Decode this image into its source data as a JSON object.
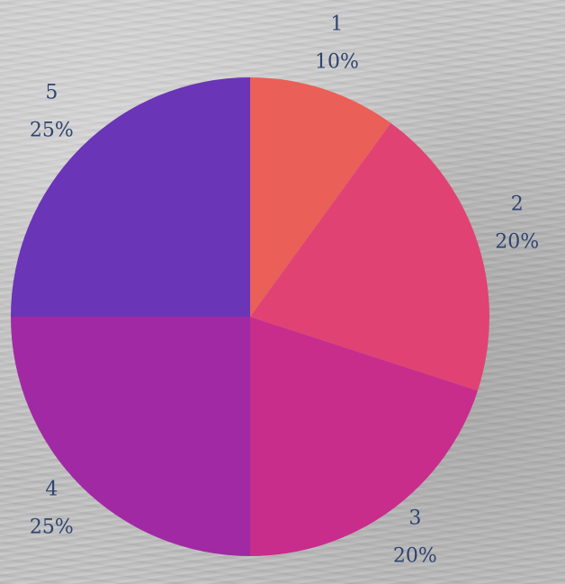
{
  "chart_data": {
    "type": "pie",
    "categories": [
      "1",
      "2",
      "3",
      "4",
      "5"
    ],
    "values": [
      10,
      20,
      20,
      25,
      25
    ],
    "percent_labels": [
      "10%",
      "20%",
      "20%",
      "25%",
      "25%"
    ],
    "colors": [
      "#ea5f58",
      "#e04373",
      "#c82d8c",
      "#a12aa4",
      "#6a35b6"
    ],
    "label_color": "#2f4370",
    "start_angle": "top (12 o'clock)",
    "direction": "clockwise",
    "labels_outside": true
  }
}
